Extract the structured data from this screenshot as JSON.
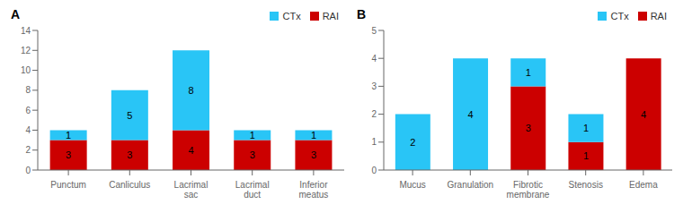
{
  "chart_data": [
    {
      "type": "bar",
      "title": "A",
      "categories": [
        "Punctum",
        "Canliculus",
        "Lacrimal sac",
        "Lacrimal duct",
        "Inferior meatus"
      ],
      "series": [
        {
          "name": "CTx",
          "color": "#29C5F6",
          "values": [
            1,
            5,
            8,
            1,
            1
          ]
        },
        {
          "name": "RAI",
          "color": "#CC0000",
          "values": [
            3,
            3,
            4,
            3,
            3
          ]
        }
      ],
      "stacked": true,
      "data_labels": true,
      "legend": "upper right",
      "grid": false,
      "ylim": [
        0,
        14
      ],
      "yticks": [
        0,
        2,
        4,
        6,
        8,
        10,
        12,
        14
      ]
    },
    {
      "type": "bar",
      "title": "B",
      "categories": [
        "Mucus",
        "Granulation",
        "Fibrotic membrane",
        "Stenosis",
        "Edema"
      ],
      "series": [
        {
          "name": "CTx",
          "color": "#29C5F6",
          "values": [
            2,
            4,
            1,
            1,
            0
          ]
        },
        {
          "name": "RAI",
          "color": "#CC0000",
          "values": [
            0,
            0,
            3,
            1,
            4
          ]
        }
      ],
      "stacked": true,
      "data_labels": true,
      "legend": "upper right",
      "grid": false,
      "ylim": [
        0,
        5
      ],
      "yticks": [
        0,
        1,
        2,
        3,
        4,
        5
      ]
    }
  ]
}
